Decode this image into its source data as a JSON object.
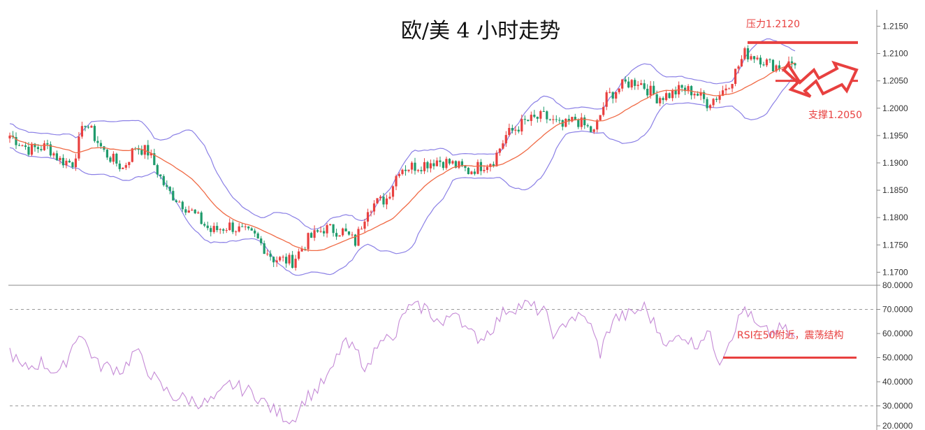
{
  "chart_data": {
    "type": "candlestick",
    "title": "欧/美 4 小时走势",
    "colors": {
      "up": "#e8403f",
      "down": "#1f9b6c",
      "ma": "#f06a45",
      "band": "#8b80e6",
      "rsi": "#c58ad6",
      "annotation": "#e8403f",
      "axis": "#888888"
    },
    "price_axis": {
      "ylim": [
        1.168,
        1.218
      ],
      "ticks": [
        "1.2150",
        "1.2100",
        "1.2050",
        "1.2000",
        "1.1950",
        "1.1900",
        "1.1850",
        "1.1800",
        "1.1750",
        "1.1700"
      ]
    },
    "rsi_axis": {
      "ylim": [
        20,
        80
      ],
      "ticks": [
        "80.0000",
        "70.0000",
        "60.0000",
        "50.0000",
        "40.0000",
        "30.0000",
        "20.0000"
      ],
      "guides": [
        70,
        30
      ]
    },
    "price_keypoints": [
      [
        0,
        1.195
      ],
      [
        6,
        1.1925
      ],
      [
        12,
        1.193
      ],
      [
        16,
        1.1905
      ],
      [
        20,
        1.19
      ],
      [
        24,
        1.1975
      ],
      [
        30,
        1.192
      ],
      [
        36,
        1.189
      ],
      [
        40,
        1.193
      ],
      [
        44,
        1.192
      ],
      [
        50,
        1.185
      ],
      [
        58,
        1.181
      ],
      [
        64,
        1.1775
      ],
      [
        70,
        1.1785
      ],
      [
        78,
        1.1765
      ],
      [
        84,
        1.1725
      ],
      [
        90,
        1.172
      ],
      [
        95,
        1.176
      ],
      [
        100,
        1.178
      ],
      [
        106,
        1.1775
      ],
      [
        110,
        1.1755
      ],
      [
        114,
        1.182
      ],
      [
        120,
        1.1835
      ],
      [
        124,
        1.189
      ],
      [
        130,
        1.1895
      ],
      [
        136,
        1.1905
      ],
      [
        140,
        1.19
      ],
      [
        146,
        1.1885
      ],
      [
        150,
        1.1895
      ],
      [
        154,
        1.1905
      ],
      [
        158,
        1.195
      ],
      [
        164,
        1.1975
      ],
      [
        170,
        1.1985
      ],
      [
        176,
        1.1965
      ],
      [
        180,
        1.198
      ],
      [
        186,
        1.1955
      ],
      [
        190,
        1.202
      ],
      [
        196,
        1.2045
      ],
      [
        200,
        1.205
      ],
      [
        206,
        1.202
      ],
      [
        210,
        1.2025
      ],
      [
        214,
        1.2035
      ],
      [
        218,
        1.203
      ],
      [
        222,
        1.201
      ],
      [
        226,
        1.2025
      ],
      [
        230,
        1.2055
      ],
      [
        234,
        1.21
      ],
      [
        238,
        1.2095
      ],
      [
        242,
        1.208
      ],
      [
        246,
        1.2075
      ],
      [
        250,
        1.2085
      ]
    ],
    "rsi_keypoints": [
      [
        0,
        53
      ],
      [
        4,
        45
      ],
      [
        10,
        48
      ],
      [
        16,
        43
      ],
      [
        22,
        61
      ],
      [
        28,
        47
      ],
      [
        32,
        46
      ],
      [
        36,
        45
      ],
      [
        40,
        53
      ],
      [
        44,
        45
      ],
      [
        48,
        38
      ],
      [
        52,
        34
      ],
      [
        56,
        33
      ],
      [
        62,
        31
      ],
      [
        66,
        33
      ],
      [
        70,
        39
      ],
      [
        78,
        35
      ],
      [
        84,
        28
      ],
      [
        90,
        24
      ],
      [
        94,
        33
      ],
      [
        98,
        37
      ],
      [
        102,
        43
      ],
      [
        106,
        56
      ],
      [
        110,
        53
      ],
      [
        114,
        45
      ],
      [
        118,
        60
      ],
      [
        122,
        56
      ],
      [
        126,
        70
      ],
      [
        132,
        71
      ],
      [
        138,
        63
      ],
      [
        142,
        71
      ],
      [
        146,
        60
      ],
      [
        150,
        58
      ],
      [
        154,
        63
      ],
      [
        158,
        70
      ],
      [
        164,
        72
      ],
      [
        170,
        69
      ],
      [
        174,
        58
      ],
      [
        178,
        67
      ],
      [
        184,
        66
      ],
      [
        188,
        52
      ],
      [
        192,
        66
      ],
      [
        198,
        68
      ],
      [
        202,
        71
      ],
      [
        206,
        62
      ],
      [
        210,
        55
      ],
      [
        214,
        60
      ],
      [
        218,
        55
      ],
      [
        222,
        61
      ],
      [
        226,
        49
      ],
      [
        230,
        60
      ],
      [
        234,
        71
      ],
      [
        238,
        62
      ],
      [
        242,
        60
      ],
      [
        246,
        62
      ],
      [
        250,
        58
      ]
    ],
    "bar_count": 251,
    "resistance": {
      "label": "压力1.2120",
      "value": 1.212
    },
    "support": {
      "label": "支撑1.2050",
      "value": 1.205
    },
    "rsi_note": {
      "label": "RSI在50附近，震荡结构",
      "value": 50
    }
  }
}
